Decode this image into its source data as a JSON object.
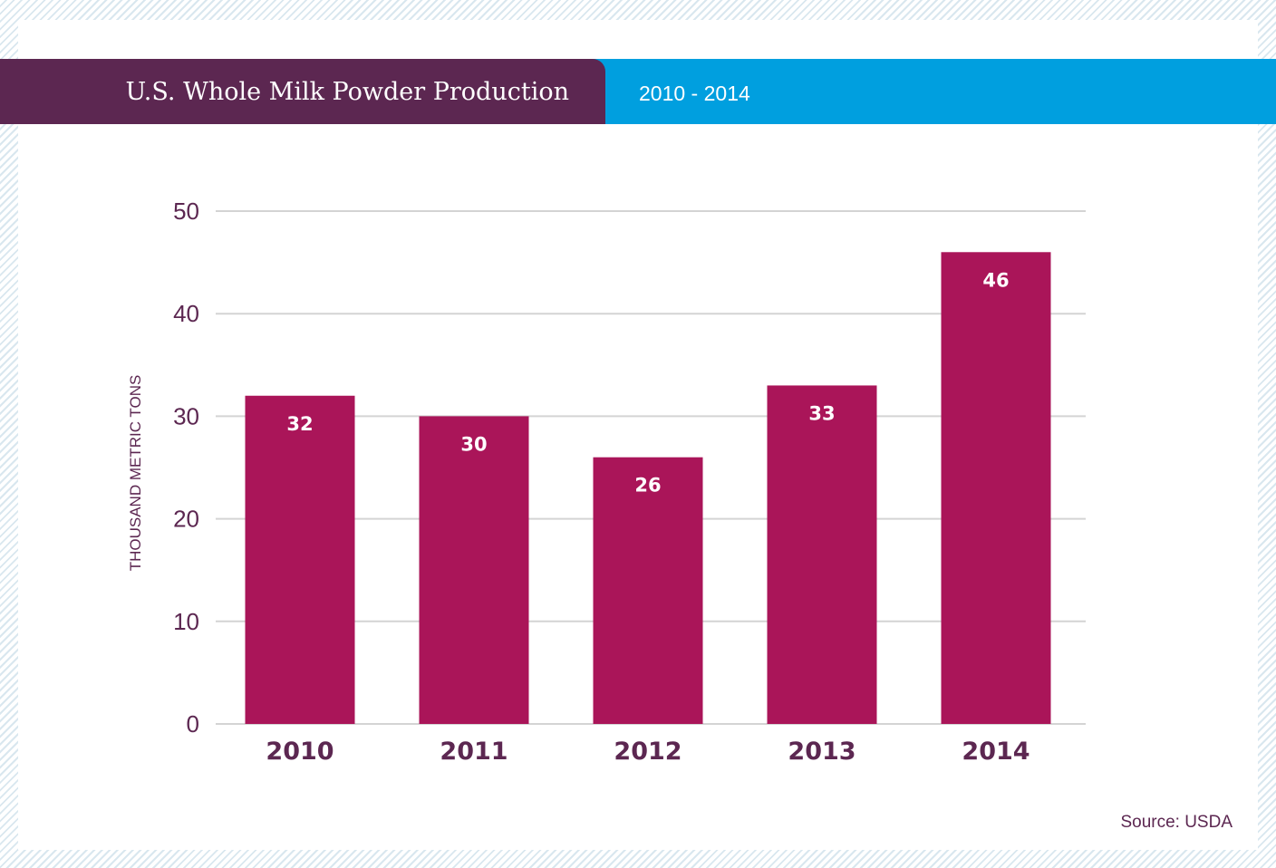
{
  "header": {
    "title": "U.S. Whole Milk Powder Production",
    "subtitle": "2010 - 2014"
  },
  "source": "Source: USDA",
  "colors": {
    "bar": "#aa1559",
    "title_box": "#5c2751",
    "header_band": "#009fdf",
    "grid": "#d4d4d4",
    "text": "#5c2751"
  },
  "chart_data": {
    "type": "bar",
    "categories": [
      "2010",
      "2011",
      "2012",
      "2013",
      "2014"
    ],
    "values": [
      32,
      30,
      26,
      33,
      46
    ],
    "value_labels": [
      "32",
      "30",
      "26",
      "33",
      "46"
    ],
    "title": "U.S. Whole Milk Powder Production",
    "subtitle": "2010 - 2014",
    "xlabel": "",
    "ylabel": "THOUSAND METRIC TONS",
    "ylim": [
      0,
      50
    ],
    "yticks": [
      0,
      10,
      20,
      30,
      40,
      50
    ],
    "ytick_labels": [
      "0",
      "10",
      "20",
      "30",
      "40",
      "50"
    ],
    "grid": true,
    "legend": "none"
  }
}
